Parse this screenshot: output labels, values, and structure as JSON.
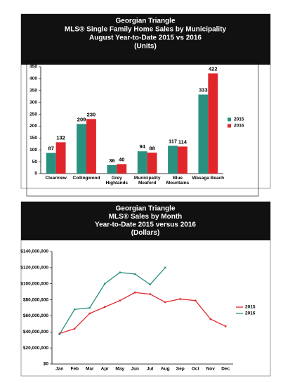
{
  "chart_data": [
    {
      "type": "bar",
      "title": [
        "Georgian Triangle",
        "MLS®  Single Family Home Sales by Municipality",
        "August Year-to-Date 2015 vs 2016",
        "(Units)"
      ],
      "categories": [
        "Clearview",
        "Collingwood",
        "Grey\nHighlands",
        "Municipality\nMeaford",
        "Blue\nMountains",
        "Wasaga Beach"
      ],
      "series": [
        {
          "name": "2015",
          "color": "#2a9080",
          "values": [
            87,
            209,
            36,
            94,
            117,
            333
          ]
        },
        {
          "name": "2016",
          "color": "#e0262b",
          "values": [
            132,
            230,
            40,
            88,
            114,
            422
          ]
        }
      ],
      "ylim": [
        0,
        450
      ],
      "yticks": [
        0,
        50,
        100,
        150,
        200,
        250,
        300,
        350,
        400,
        450
      ],
      "legend": "right",
      "grid": false
    },
    {
      "type": "line",
      "title": [
        "Georgian Triangle",
        "MLS® Sales by Month",
        "Year-to-Date 2015 versus 2016",
        "(Dollars)"
      ],
      "categories": [
        "Jan",
        "Feb",
        "Mar",
        "Apr",
        "May",
        "Jun",
        "Jul",
        "Aug",
        "Sep",
        "Oct",
        "Nov",
        "Dec"
      ],
      "series": [
        {
          "name": "2015",
          "color": "#e0262b",
          "values": [
            38000000,
            44000000,
            63000000,
            71000000,
            79000000,
            89000000,
            87000000,
            77000000,
            81000000,
            79000000,
            56000000,
            47000000
          ]
        },
        {
          "name": "2016",
          "color": "#2a9080",
          "values": [
            37000000,
            68000000,
            70000000,
            100000000,
            114000000,
            112000000,
            99000000,
            120000000,
            null,
            null,
            null,
            null
          ]
        }
      ],
      "ylim": [
        0,
        140000000
      ],
      "yticks": [
        {
          "value": 0,
          "label": "$0"
        },
        {
          "value": 20000000,
          "label": "$20,000,000"
        },
        {
          "value": 40000000,
          "label": "$40,000,000"
        },
        {
          "value": 60000000,
          "label": "$60,000,000"
        },
        {
          "value": 80000000,
          "label": "$80,000,000"
        },
        {
          "value": 100000000,
          "label": "$100,000,000"
        },
        {
          "value": 120000000,
          "label": "$120,000,000"
        },
        {
          "value": 140000000,
          "label": "$140,000,000"
        }
      ],
      "legend": "right",
      "grid": false
    }
  ]
}
